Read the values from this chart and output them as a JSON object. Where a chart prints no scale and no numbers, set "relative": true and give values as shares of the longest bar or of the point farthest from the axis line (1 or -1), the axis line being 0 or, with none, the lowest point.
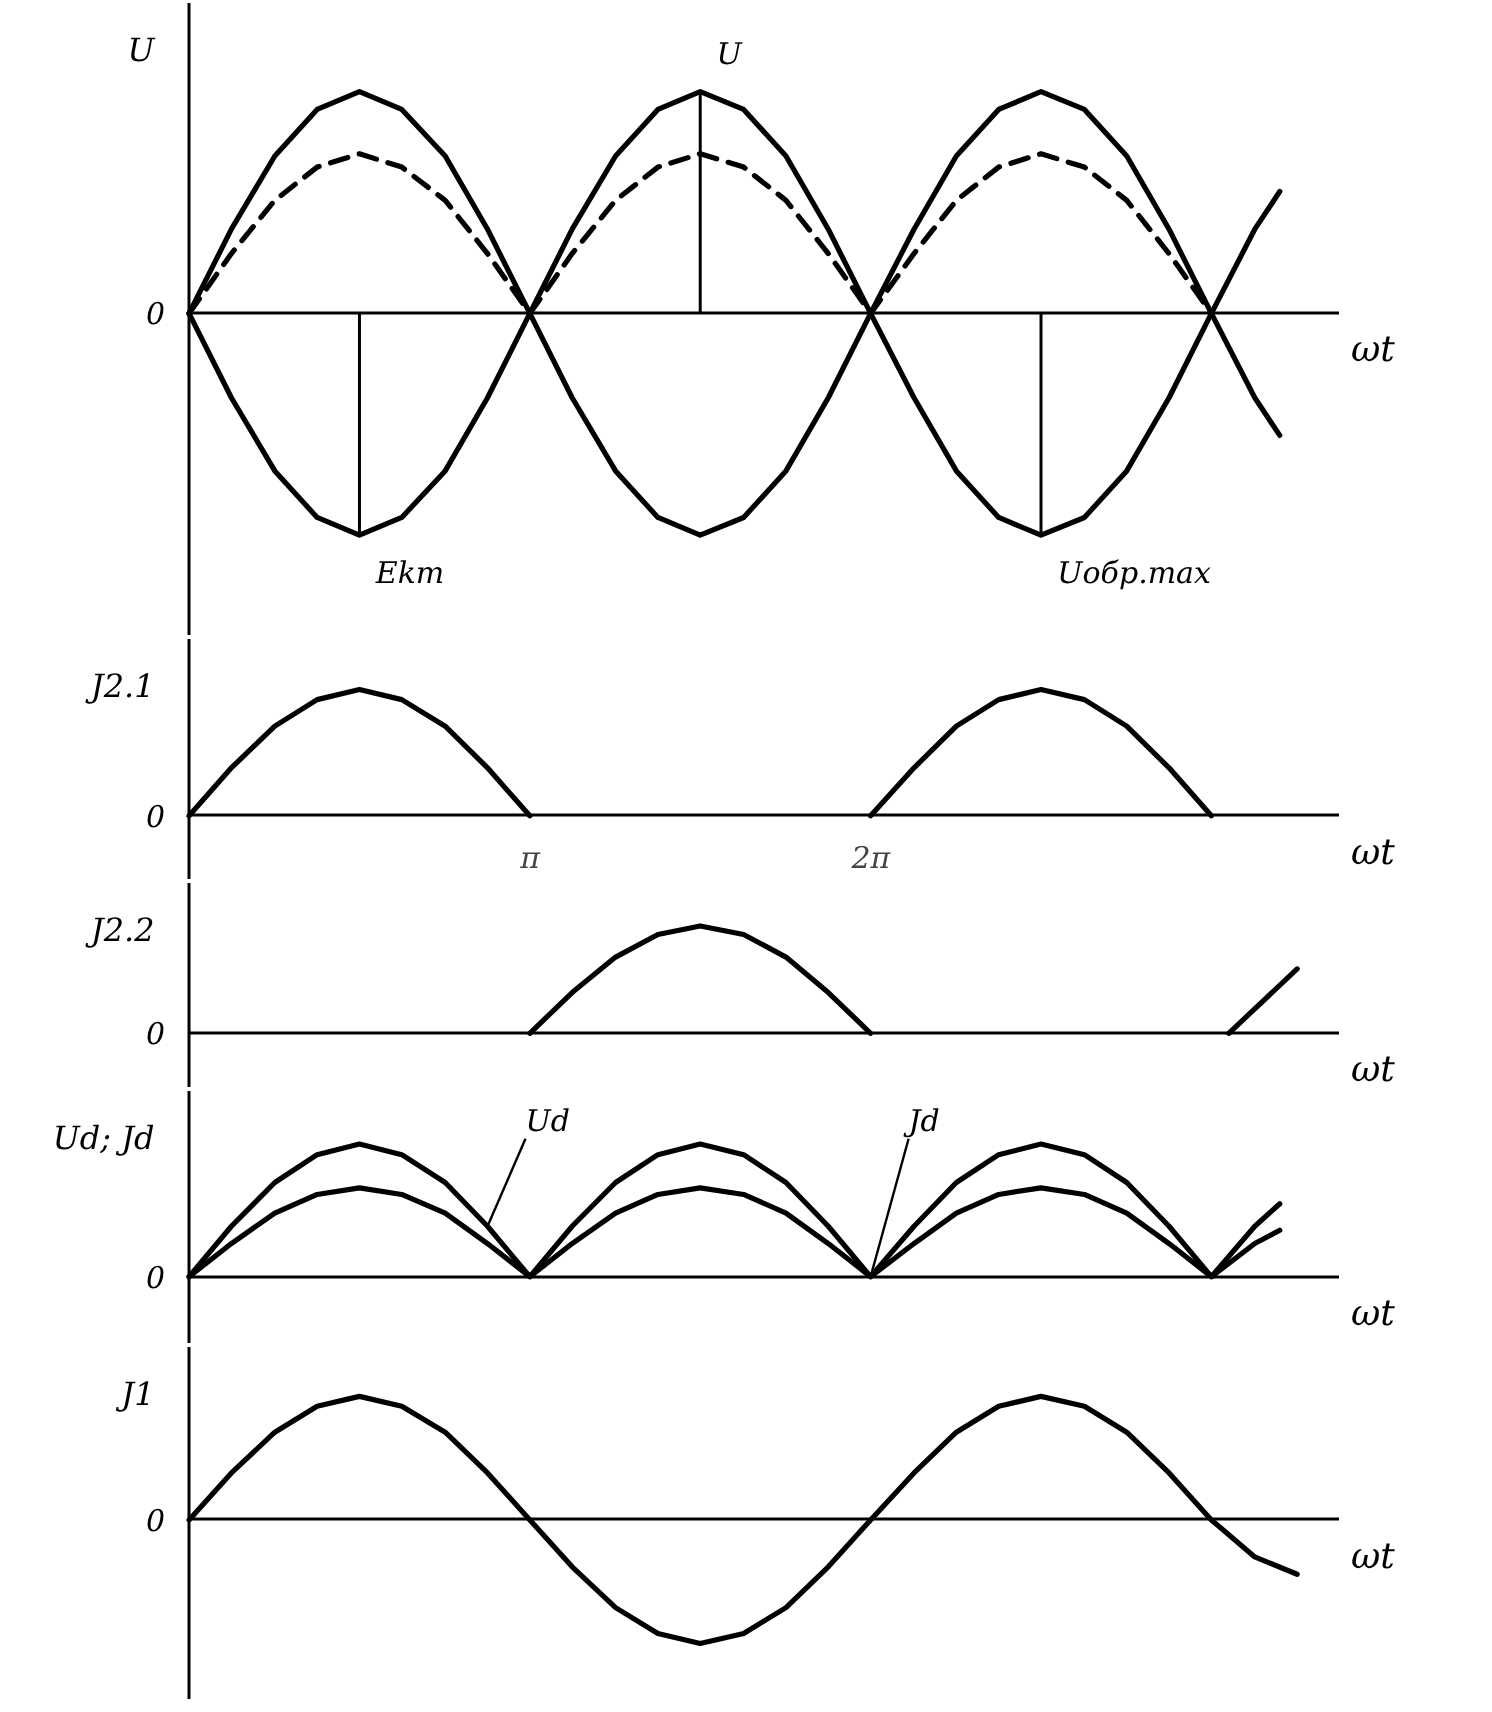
{
  "chart_data": [
    {
      "type": "line",
      "relative": true,
      "ylabel": "U",
      "xlabel": "ωt",
      "xlim": [
        0,
        10.6
      ],
      "legend": false,
      "grid": false,
      "x": [
        0,
        0.39,
        0.79,
        1.18,
        1.57,
        1.96,
        2.36,
        2.75,
        3.14,
        3.53,
        3.93,
        4.32,
        4.71,
        5.11,
        5.5,
        5.89,
        6.28,
        6.68,
        7.07,
        7.46,
        7.85,
        8.25,
        8.64,
        9.03,
        9.42,
        9.82,
        10.05
      ],
      "series": [
        {
          "color": "#000000",
          "line_style": "solid",
          "values": [
            0,
            0.38,
            0.71,
            0.92,
            1,
            0.92,
            0.71,
            0.38,
            0,
            -0.38,
            -0.71,
            -0.92,
            -1,
            -0.92,
            -0.71,
            -0.38,
            0,
            0.38,
            0.71,
            0.92,
            1,
            0.92,
            0.71,
            0.38,
            0,
            -0.38,
            -0.55
          ]
        },
        {
          "color": "#000000",
          "line_style": "solid",
          "values": [
            0,
            -0.38,
            -0.71,
            -0.92,
            -1,
            -0.92,
            -0.71,
            -0.38,
            0,
            0.38,
            0.71,
            0.92,
            1,
            0.92,
            0.71,
            0.38,
            0,
            -0.38,
            -0.71,
            -0.92,
            -1,
            -0.92,
            -0.71,
            -0.38,
            0,
            0.38,
            0.55
          ]
        },
        {
          "color": "#000000",
          "line_style": "dashed",
          "values": [
            0,
            0.27,
            0.51,
            0.66,
            0.72,
            0.66,
            0.51,
            0.27,
            0,
            0.27,
            0.51,
            0.66,
            0.72,
            0.66,
            0.51,
            0.27,
            0,
            0.27,
            0.51,
            0.66,
            0.72,
            0.66,
            0.51,
            0.27,
            0,
            null,
            null
          ]
        }
      ],
      "annotations": [
        "0",
        "Ekm",
        "U",
        "Uобр.max"
      ]
    },
    {
      "type": "line",
      "relative": true,
      "ylabel": "J2.1",
      "xlabel": "ωt",
      "xlim": [
        0,
        10.6
      ],
      "legend": false,
      "grid": false,
      "xticks": [
        {
          "value": 3.1416,
          "label": "π"
        },
        {
          "value": 6.2832,
          "label": "2π"
        }
      ],
      "x": [
        0,
        0.39,
        0.79,
        1.18,
        1.57,
        1.96,
        2.36,
        2.75,
        3.14,
        3.53,
        3.93,
        4.32,
        4.71,
        5.11,
        5.5,
        5.89,
        6.28,
        6.68,
        7.07,
        7.46,
        7.85,
        8.25,
        8.64,
        9.03,
        9.42
      ],
      "series": [
        {
          "color": "#000000",
          "values": [
            0,
            0.38,
            0.71,
            0.92,
            1,
            0.92,
            0.71,
            0.38,
            0,
            null,
            null,
            null,
            null,
            null,
            null,
            null,
            0,
            0.38,
            0.71,
            0.92,
            1,
            0.92,
            0.71,
            0.38,
            0
          ]
        }
      ],
      "annotations": [
        "0"
      ]
    },
    {
      "type": "line",
      "relative": true,
      "ylabel": "J2.2",
      "xlabel": "ωt",
      "xlim": [
        0,
        10.6
      ],
      "legend": false,
      "grid": false,
      "x": [
        3.14,
        3.53,
        3.93,
        4.32,
        4.71,
        5.11,
        5.5,
        5.89,
        6.28,
        7.85,
        9.58,
        10.21
      ],
      "series": [
        {
          "color": "#000000",
          "values": [
            0,
            0.38,
            0.71,
            0.92,
            1,
            0.92,
            0.71,
            0.38,
            0,
            null,
            0,
            0.6
          ]
        }
      ],
      "annotations": [
        "0"
      ]
    },
    {
      "type": "line",
      "relative": true,
      "ylabel": "Ud; Jd",
      "xlabel": "ωt",
      "xlim": [
        0,
        10.6
      ],
      "legend": false,
      "grid": false,
      "x": [
        0,
        0.39,
        0.79,
        1.18,
        1.57,
        1.96,
        2.36,
        2.75,
        3.14,
        3.53,
        3.93,
        4.32,
        4.71,
        5.11,
        5.5,
        5.89,
        6.28,
        6.68,
        7.07,
        7.46,
        7.85,
        8.25,
        8.64,
        9.03,
        9.42,
        9.82,
        10.05
      ],
      "series": [
        {
          "name": "Ud",
          "color": "#000000",
          "values": [
            0,
            0.38,
            0.71,
            0.92,
            1,
            0.92,
            0.71,
            0.38,
            0,
            0.38,
            0.71,
            0.92,
            1,
            0.92,
            0.71,
            0.38,
            0,
            0.38,
            0.71,
            0.92,
            1,
            0.92,
            0.71,
            0.38,
            0,
            0.38,
            0.55
          ]
        },
        {
          "name": "Jd",
          "color": "#000000",
          "values": [
            0,
            0.25,
            0.48,
            0.62,
            0.67,
            0.62,
            0.48,
            0.25,
            0,
            0.25,
            0.48,
            0.62,
            0.67,
            0.62,
            0.48,
            0.25,
            0,
            0.25,
            0.48,
            0.62,
            0.67,
            0.62,
            0.48,
            0.25,
            0,
            0.25,
            0.35
          ]
        }
      ],
      "annotations": [
        "0"
      ]
    },
    {
      "type": "line",
      "relative": true,
      "ylabel": "J1",
      "xlabel": "ωt",
      "xlim": [
        0,
        10.6
      ],
      "legend": false,
      "grid": false,
      "x": [
        0,
        0.39,
        0.79,
        1.18,
        1.57,
        1.96,
        2.36,
        2.75,
        3.14,
        3.53,
        3.93,
        4.32,
        4.71,
        5.11,
        5.5,
        5.89,
        6.28,
        6.68,
        7.07,
        7.46,
        7.85,
        8.25,
        8.64,
        9.03,
        9.42,
        9.82,
        10.21
      ],
      "series": [
        {
          "color": "#000000",
          "values": [
            0,
            0.38,
            0.71,
            0.92,
            1,
            0.92,
            0.71,
            0.38,
            0,
            -0.38,
            -0.71,
            -0.92,
            -1,
            -0.92,
            -0.71,
            -0.38,
            0,
            0.38,
            0.71,
            0.92,
            1,
            0.92,
            0.71,
            0.38,
            0,
            -0.3,
            -0.44
          ]
        }
      ],
      "annotations": [
        "0"
      ]
    }
  ]
}
